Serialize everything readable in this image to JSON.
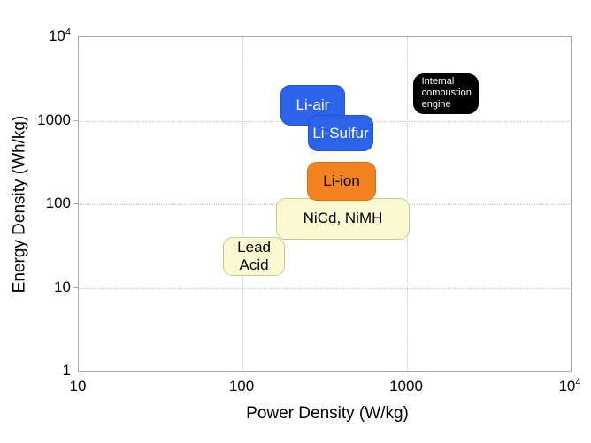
{
  "chart_data": {
    "type": "scatter",
    "variant": "ragone-region-plot",
    "title": "",
    "xlabel": "Power Density (W/kg)",
    "ylabel": "Energy Density (Wh/kg)",
    "x_scale": "log",
    "y_scale": "log",
    "xlim": [
      10,
      10000
    ],
    "ylim": [
      1,
      10000
    ],
    "grid_on": true,
    "x_ticks": [
      {
        "value": 10,
        "base": "10",
        "sup": ""
      },
      {
        "value": 100,
        "base": "100",
        "sup": ""
      },
      {
        "value": 1000,
        "base": "1000",
        "sup": ""
      },
      {
        "value": 10000,
        "base": "10",
        "sup": "4"
      }
    ],
    "y_ticks": [
      {
        "value": 1,
        "base": "1",
        "sup": ""
      },
      {
        "value": 10,
        "base": "10",
        "sup": ""
      },
      {
        "value": 100,
        "base": "100",
        "sup": ""
      },
      {
        "value": 1000,
        "base": "1000",
        "sup": ""
      },
      {
        "value": 10000,
        "base": "10",
        "sup": "4"
      }
    ],
    "grid": {
      "x_values": [
        100,
        1000
      ],
      "y_values": [
        10,
        100,
        1000
      ],
      "style": "dotted",
      "color": "#c9c9bb"
    },
    "axis_color": "#ababab",
    "regions": [
      {
        "id": "nicd-nimh",
        "label_lines": [
          "NiCd, NiMH"
        ],
        "power_w_per_kg": [
          160,
          1040
        ],
        "energy_wh_per_kg": [
          38,
          118
        ],
        "fill": "#FAFAD2",
        "border": "#C9C993",
        "text_color": "#000000",
        "small_label": false,
        "text_align": "center"
      },
      {
        "id": "lead-acid",
        "label_lines": [
          "Lead",
          "Acid"
        ],
        "power_w_per_kg": [
          76,
          181
        ],
        "energy_wh_per_kg": [
          14,
          41
        ],
        "fill": "#FAFAD2",
        "border": "#C9C993",
        "text_color": "#000000",
        "small_label": false,
        "text_align": "center"
      },
      {
        "id": "li-ion",
        "label_lines": [
          "Li-ion"
        ],
        "power_w_per_kg": [
          247,
          650
        ],
        "energy_wh_per_kg": [
          110,
          320
        ],
        "fill": "#F3831E",
        "border": "#DC6E12",
        "text_color": "#000000",
        "small_label": false,
        "text_align": "center"
      },
      {
        "id": "li-air",
        "label_lines": [
          "Li-air"
        ],
        "power_w_per_kg": [
          170,
          420
        ],
        "energy_wh_per_kg": [
          865,
          2700
        ],
        "fill": "#2B64EA",
        "border": "#1E56D8",
        "text_color": "#FFFFFF",
        "small_label": false,
        "text_align": "center"
      },
      {
        "id": "li-sulfur",
        "label_lines": [
          "Li-Sulfur"
        ],
        "power_w_per_kg": [
          250,
          625
        ],
        "energy_wh_per_kg": [
          430,
          1160
        ],
        "fill": "#2B64EA",
        "border": "#1E56D8",
        "text_color": "#FFFFFF",
        "small_label": false,
        "text_align": "center"
      },
      {
        "id": "internal-combustion-engine",
        "label_lines": [
          "Internal",
          "combustion",
          "engine"
        ],
        "power_w_per_kg": [
          1090,
          2760
        ],
        "energy_wh_per_kg": [
          1210,
          3700
        ],
        "fill": "#000000",
        "border": "#000000",
        "text_color": "#FFFFFF",
        "small_label": true,
        "text_align": "left"
      }
    ]
  }
}
